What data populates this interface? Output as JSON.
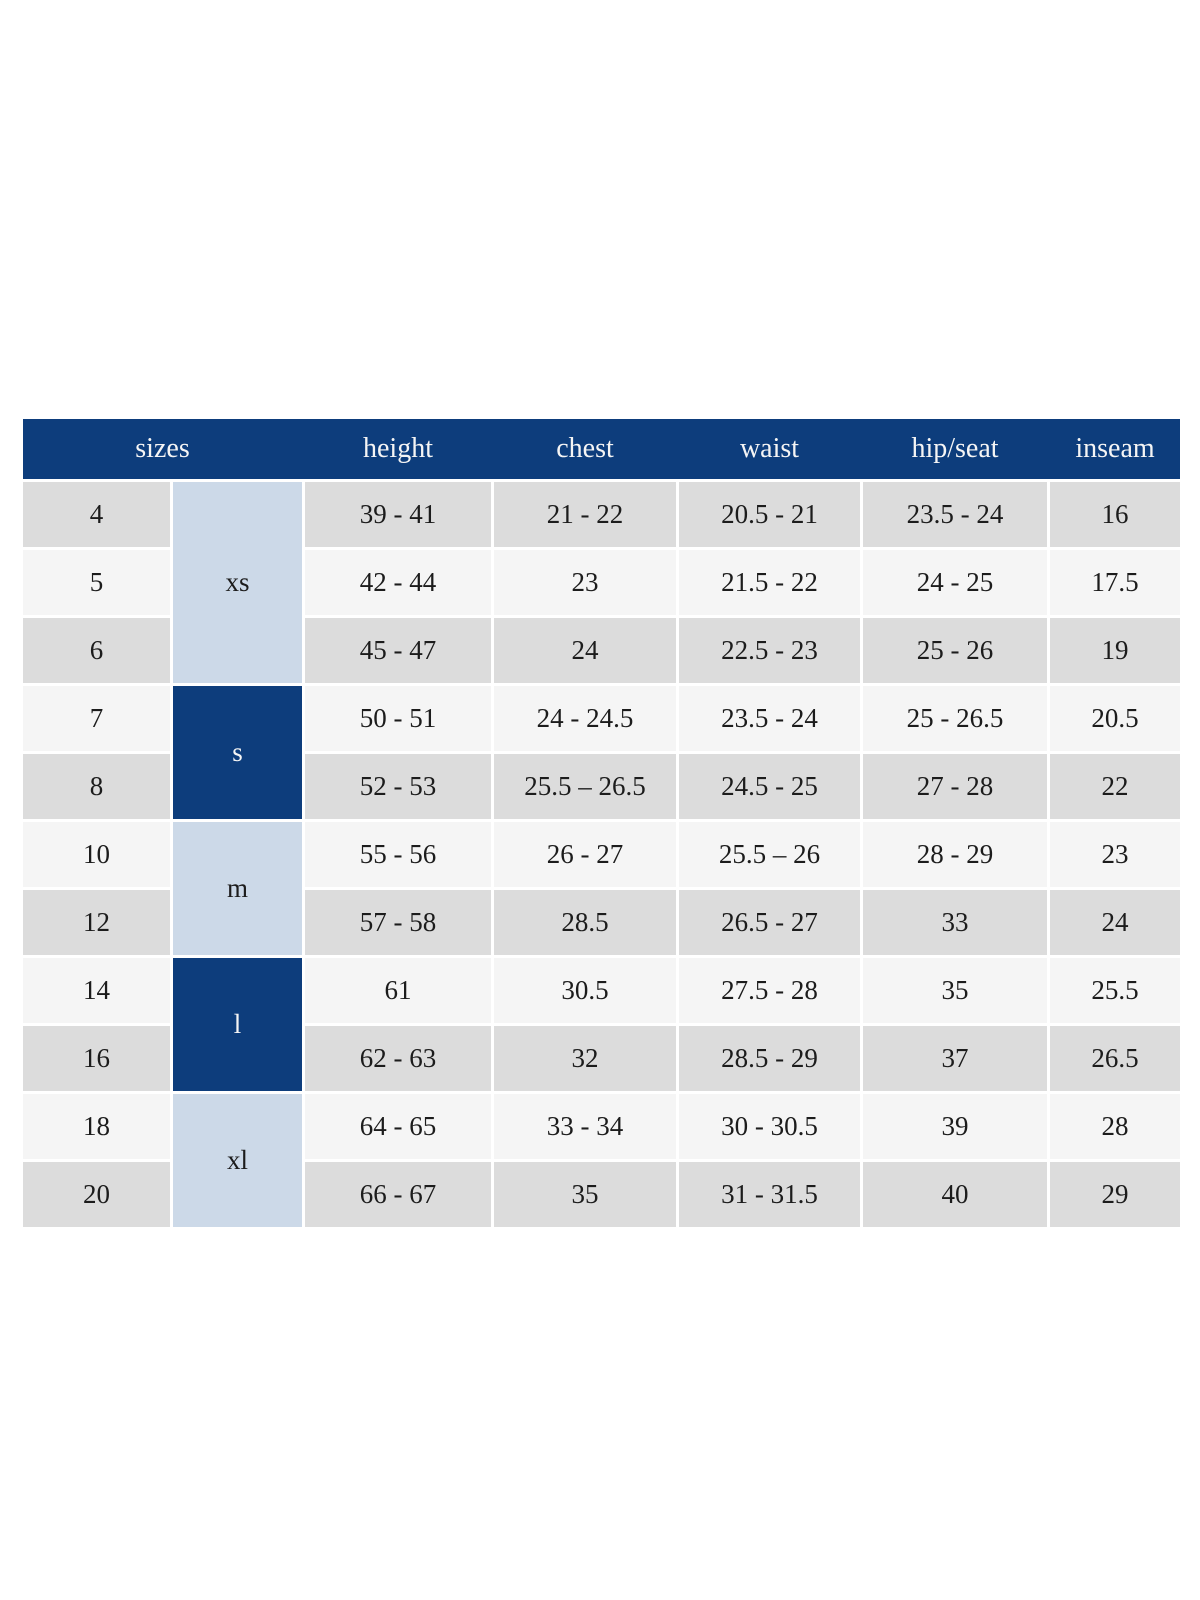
{
  "colors": {
    "page_bg": "#ffffff",
    "header_blue": "#0d3d7c",
    "group_light_blue": "#ccd9e8",
    "row_gray": "#dcdcdc",
    "row_light": "#f5f5f5",
    "header_text": "#f5f5f5",
    "body_text": "#1c1c1c"
  },
  "table": {
    "columns": [
      "sizes",
      "height",
      "chest",
      "waist",
      "hip/seat",
      "inseam"
    ],
    "groups": [
      {
        "label": "xs",
        "tone": "light",
        "span_rows": 3
      },
      {
        "label": "s",
        "tone": "dark",
        "span_rows": 2
      },
      {
        "label": "m",
        "tone": "light",
        "span_rows": 2
      },
      {
        "label": "l",
        "tone": "dark",
        "span_rows": 2
      },
      {
        "label": "xl",
        "tone": "light",
        "span_rows": 2
      }
    ],
    "rows": [
      {
        "size": "4",
        "group": "xs",
        "height": "39 - 41",
        "chest": "21 - 22",
        "waist": "20.5 - 21",
        "hip_seat": "23.5 - 24",
        "inseam": "16"
      },
      {
        "size": "5",
        "group": "xs",
        "height": "42 - 44",
        "chest": "23",
        "waist": "21.5 - 22",
        "hip_seat": "24 - 25",
        "inseam": "17.5"
      },
      {
        "size": "6",
        "group": "xs",
        "height": "45 - 47",
        "chest": "24",
        "waist": "22.5 - 23",
        "hip_seat": "25 - 26",
        "inseam": "19"
      },
      {
        "size": "7",
        "group": "s",
        "height": "50 - 51",
        "chest": "24 - 24.5",
        "waist": "23.5 - 24",
        "hip_seat": "25 - 26.5",
        "inseam": "20.5"
      },
      {
        "size": "8",
        "group": "s",
        "height": "52 - 53",
        "chest": "25.5 – 26.5",
        "waist": "24.5 - 25",
        "hip_seat": "27 - 28",
        "inseam": "22"
      },
      {
        "size": "10",
        "group": "m",
        "height": "55 - 56",
        "chest": "26 - 27",
        "waist": "25.5 – 26",
        "hip_seat": "28 - 29",
        "inseam": "23"
      },
      {
        "size": "12",
        "group": "m",
        "height": "57 - 58",
        "chest": "28.5",
        "waist": "26.5 - 27",
        "hip_seat": "33",
        "inseam": "24"
      },
      {
        "size": "14",
        "group": "l",
        "height": "61",
        "chest": "30.5",
        "waist": "27.5 - 28",
        "hip_seat": "35",
        "inseam": "25.5"
      },
      {
        "size": "16",
        "group": "l",
        "height": "62 - 63",
        "chest": "32",
        "waist": "28.5 - 29",
        "hip_seat": "37",
        "inseam": "26.5"
      },
      {
        "size": "18",
        "group": "xl",
        "height": "64 - 65",
        "chest": "33 - 34",
        "waist": "30 - 30.5",
        "hip_seat": "39",
        "inseam": "28"
      },
      {
        "size": "20",
        "group": "xl",
        "height": "66 - 67",
        "chest": "35",
        "waist": "31 - 31.5",
        "hip_seat": "40",
        "inseam": "29"
      }
    ]
  }
}
